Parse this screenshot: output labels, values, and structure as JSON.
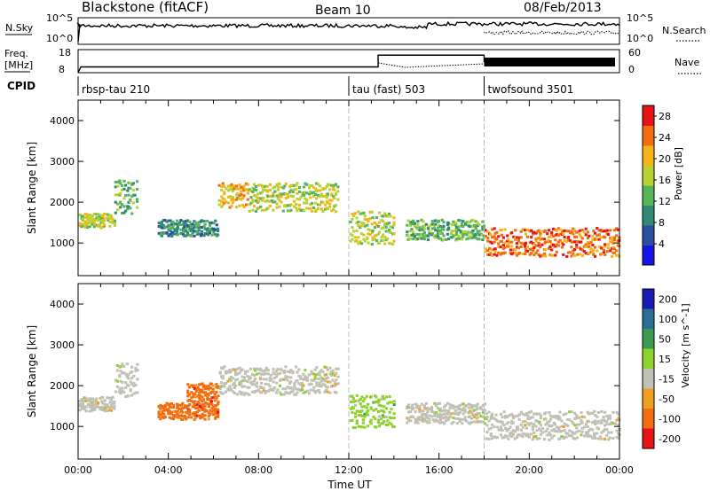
{
  "header": {
    "station": "Blackstone (fitACF)",
    "beam": "Beam 10",
    "date": "08/Feb/2013"
  },
  "noise_panel": {
    "left_label": "N.Sky",
    "left_ticks": [
      "10^5",
      "10^0"
    ],
    "right_ticks": [
      "10^5",
      "10^0"
    ],
    "right_label": "N.Search"
  },
  "freq_panel": {
    "left_label_1": "Freq.",
    "left_label_2": "[MHz]",
    "left_ticks": [
      "18",
      "8"
    ],
    "right_ticks": [
      "60",
      "0"
    ],
    "right_label": "Nave"
  },
  "cpid": {
    "label": "CPID",
    "programs": [
      {
        "name": "rbsp-tau 210",
        "start_hour": 0
      },
      {
        "name": "tau (fast) 503",
        "start_hour": 12
      },
      {
        "name": "twofsound 3501",
        "start_hour": 18
      }
    ]
  },
  "chart_data": [
    {
      "type": "heatmap",
      "title": "",
      "xlabel": "Time UT",
      "ylabel": "Slant Range [km]",
      "xlim": [
        0,
        24
      ],
      "ylim": [
        200,
        4500
      ],
      "x_ticks": [
        "00:00",
        "04:00",
        "08:00",
        "12:00",
        "16:00",
        "20:00",
        "00:00"
      ],
      "y_ticks": [
        1000,
        2000,
        3000,
        4000
      ],
      "colorbar": {
        "label": "Power [dB]",
        "ticks": [
          4,
          8,
          12,
          16,
          20,
          24,
          28
        ],
        "range": [
          0,
          30
        ],
        "colors": [
          "#1414e6",
          "#2a4ea0",
          "#2e8a74",
          "#56b45a",
          "#b8d232",
          "#f6b41a",
          "#f06e10",
          "#e61414"
        ]
      },
      "echo_bands": [
        {
          "t0": 0.0,
          "t1": 1.6,
          "range_start": 1400,
          "range_end": 1750,
          "power": 18
        },
        {
          "t0": 1.6,
          "t1": 2.6,
          "range_start": 1750,
          "range_end": 2600,
          "power": 12
        },
        {
          "t0": 3.5,
          "t1": 6.2,
          "range_start": 1200,
          "range_end": 1600,
          "power": 10
        },
        {
          "t0": 6.2,
          "t1": 7.5,
          "range_start": 1900,
          "range_end": 2500,
          "power": 22
        },
        {
          "t0": 7.5,
          "t1": 11.5,
          "range_start": 1800,
          "range_end": 2500,
          "power": 16
        },
        {
          "t0": 12.0,
          "t1": 14.0,
          "range_start": 1000,
          "range_end": 1800,
          "power": 18
        },
        {
          "t0": 14.5,
          "t1": 18.0,
          "range_start": 1100,
          "range_end": 1600,
          "power": 14
        },
        {
          "t0": 18.0,
          "t1": 24.0,
          "range_start": 700,
          "range_end": 1400,
          "power": 24
        }
      ]
    },
    {
      "type": "heatmap",
      "title": "",
      "xlabel": "Time UT",
      "ylabel": "Slant Range [km]",
      "xlim": [
        0,
        24
      ],
      "ylim": [
        200,
        4500
      ],
      "x_ticks": [
        "00:00",
        "04:00",
        "08:00",
        "12:00",
        "16:00",
        "20:00",
        "00:00"
      ],
      "y_ticks": [
        1000,
        2000,
        3000,
        4000
      ],
      "colorbar": {
        "label": "Velocity [m s^-1]",
        "ticks": [
          "200",
          "100",
          "50",
          "15",
          "-15",
          "-50",
          "-100",
          "-200"
        ],
        "colors": [
          "#1a1ab4",
          "#2a6e96",
          "#3a9a50",
          "#8ed230",
          "#c0c0b4",
          "#f0a020",
          "#f06e10",
          "#e61414"
        ]
      },
      "echo_bands": [
        {
          "t0": 0.0,
          "t1": 1.6,
          "range_start": 1400,
          "range_end": 1750,
          "velocity": 0
        },
        {
          "t0": 1.6,
          "t1": 2.6,
          "range_start": 1750,
          "range_end": 2600,
          "velocity": 0
        },
        {
          "t0": 3.5,
          "t1": 6.2,
          "range_start": 1200,
          "range_end": 1600,
          "velocity": -80
        },
        {
          "t0": 4.8,
          "t1": 6.2,
          "range_start": 1600,
          "range_end": 2100,
          "velocity": -80
        },
        {
          "t0": 6.2,
          "t1": 11.5,
          "range_start": 1800,
          "range_end": 2500,
          "velocity": 0
        },
        {
          "t0": 12.0,
          "t1": 14.0,
          "range_start": 1000,
          "range_end": 1800,
          "velocity": 40
        },
        {
          "t0": 14.5,
          "t1": 18.0,
          "range_start": 1100,
          "range_end": 1600,
          "velocity": 0
        },
        {
          "t0": 18.0,
          "t1": 24.0,
          "range_start": 700,
          "range_end": 1400,
          "velocity": 0
        }
      ]
    }
  ]
}
